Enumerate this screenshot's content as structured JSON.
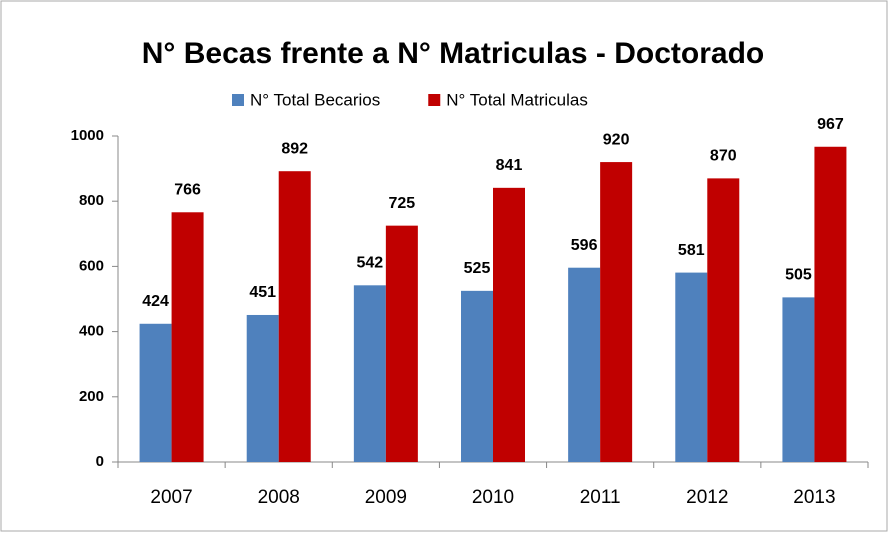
{
  "chart_data": {
    "type": "bar",
    "title": "N° Becas frente a N° Matriculas - Doctorado",
    "categories": [
      "2007",
      "2008",
      "2009",
      "2010",
      "2011",
      "2012",
      "2013"
    ],
    "series": [
      {
        "name": "N° Total Becarios",
        "color": "#4f81bd",
        "values": [
          424,
          451,
          542,
          525,
          596,
          581,
          505
        ]
      },
      {
        "name": "N° Total Matriculas",
        "color": "#c00000",
        "values": [
          766,
          892,
          725,
          841,
          920,
          870,
          967
        ]
      }
    ],
    "ylim": [
      0,
      1000
    ],
    "yticks": [
      0,
      200,
      400,
      600,
      800,
      1000
    ],
    "legend": "top"
  }
}
